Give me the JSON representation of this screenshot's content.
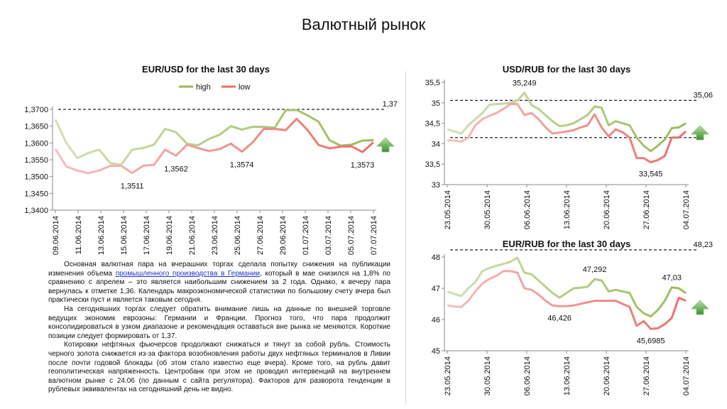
{
  "page_title": "Валютный рынок",
  "text": {
    "p1_a": "Основная валютная пара на вчерашних торгах сделала попытку снижения  на публикации изменения объема ",
    "p1_link": "промышленного производства в Германии",
    "p1_b": ", который в мае снизился на 1,8% по сравнению с апрелем – это является наибольшим  снижением  за 2 года. Однако, к вечеру пара вернулась к отметке 1,36. Календарь макроэкономической статистики по большому счету вчера был практически пуст и является таковым сегодня.",
    "p2": "На сегодняшних торгах следует обратить внимание лишь на данные по внешней торговле ведущих экономик еврозоны: Германии и Франции. Прогноз того, что пара продолжит консолидироваться в узком диапазоне и рекомендация оставаться вне рынка не меняются. Короткие позиции следует формировать от 1,37.",
    "p3": "Котировки нефтяных фьючерсов продолжают снижаться и тянут за собой рубль. Стоимость черного золота снижается из-за фактора  возобновления работы двух нефтяных терминалов в Ливии после почти годовой блокады (об этом стало известно еще вчера). Кроме того, на рубль давит геополитическая  напряженность. Центробанк  при этом не проводил интервенций  на внутреннем валютном рынке с 24.06 (по данным с сайта регулятора). Факторов для разворота тенденции  в рублевых эквивалентах на сегодняшний  день не видно."
  },
  "colors": {
    "high": "#9bbb59",
    "low": "#e8706a",
    "arrow": "#3c8d2f",
    "ref_line": "#222222"
  },
  "chart_data": [
    {
      "id": "eurusd",
      "type": "line",
      "title": "EUR/USD for the last 30 days",
      "legend_position": "top",
      "ylim": [
        1.34,
        1.37
      ],
      "yticks": [
        "1,3400",
        "1,3450",
        "1,3500",
        "1,3550",
        "1,3600",
        "1,3650",
        "1,3700"
      ],
      "ytick_values": [
        1.34,
        1.345,
        1.35,
        1.355,
        1.36,
        1.365,
        1.37
      ],
      "xtick_labels": [
        "09.06.2014",
        "11.06.2014",
        "13.06.2014",
        "15.06.2014",
        "17.06.2014",
        "19.06.2014",
        "21.06.2014",
        "23.06.2014",
        "25.06.2014",
        "27.06.2014",
        "29.06.2014",
        "01.07.2014",
        "03.07.2014",
        "05.07.2014",
        "07.07.2014"
      ],
      "reference_line": {
        "value": 1.37,
        "label": "1,37"
      },
      "arrow": "up",
      "series": [
        {
          "name": "high",
          "gradient": "light-to-dark",
          "values": [
            1.367,
            1.36,
            1.3555,
            1.357,
            1.358,
            1.354,
            1.3535,
            1.358,
            1.3585,
            1.3595,
            1.3642,
            1.3632,
            1.3598,
            1.3593,
            1.3612,
            1.3625,
            1.365,
            1.364,
            1.3648,
            1.3648,
            1.3645,
            1.3697,
            1.3698,
            1.3682,
            1.3663,
            1.3608,
            1.3592,
            1.3595,
            1.3607,
            1.3608
          ]
        },
        {
          "name": "low",
          "gradient": "light-to-dark",
          "values": [
            1.3582,
            1.353,
            1.3518,
            1.351,
            1.3518,
            1.3532,
            1.3532,
            1.3511,
            1.3532,
            1.3535,
            1.358,
            1.3562,
            1.3595,
            1.3585,
            1.3576,
            1.3582,
            1.3598,
            1.3574,
            1.3602,
            1.3642,
            1.3642,
            1.3638,
            1.3672,
            1.3638,
            1.3594,
            1.3584,
            1.3589,
            1.359,
            1.3573,
            1.3602
          ]
        }
      ],
      "data_labels": [
        {
          "series": "low",
          "index": 7,
          "text": "1,3511"
        },
        {
          "series": "low",
          "index": 11,
          "text": "1,3562"
        },
        {
          "series": "low",
          "index": 17,
          "text": "1,3574"
        },
        {
          "series": "low",
          "index": 28,
          "text": "1,3573"
        }
      ]
    },
    {
      "id": "usdrub",
      "type": "line",
      "title": "USD/RUB for the last 30 days",
      "ylim": [
        33,
        35.5
      ],
      "yticks": [
        "33",
        "33,5",
        "34",
        "34,5",
        "35",
        "35,5"
      ],
      "ytick_values": [
        33,
        33.5,
        34,
        34.5,
        35,
        35.5
      ],
      "xtick_labels": [
        "23.05.2014",
        "30.05.2014",
        "06.06.2014",
        "13.06.2014",
        "20.06.2014",
        "27.06.2014",
        "04.07.2014"
      ],
      "reference_line": {
        "value": 35.06,
        "label": "35,06"
      },
      "reference_line_2": {
        "value": 34.15
      },
      "arrow": "up",
      "series": [
        {
          "name": "high",
          "gradient": "light-to-dark",
          "values": [
            34.35,
            34.3,
            34.25,
            34.45,
            34.6,
            34.75,
            34.95,
            34.97,
            34.98,
            35.0,
            35.05,
            35.249,
            34.95,
            34.85,
            34.7,
            34.55,
            34.43,
            34.45,
            34.5,
            34.6,
            34.7,
            34.91,
            34.88,
            34.45,
            34.55,
            34.5,
            34.45,
            34.15,
            33.95,
            33.82,
            33.95,
            34.1,
            34.38,
            34.4,
            34.5
          ]
        },
        {
          "name": "low",
          "gradient": "light-to-dark",
          "values": [
            34.08,
            34.08,
            34.05,
            34.15,
            34.45,
            34.6,
            34.68,
            34.75,
            34.85,
            34.97,
            34.97,
            34.7,
            34.75,
            34.6,
            34.4,
            34.25,
            34.27,
            34.3,
            34.33,
            34.4,
            34.45,
            34.72,
            34.4,
            34.18,
            34.35,
            34.28,
            34.15,
            33.65,
            33.65,
            33.545,
            33.6,
            33.7,
            34.15,
            34.15,
            34.3
          ]
        }
      ],
      "data_labels": [
        {
          "series": "high",
          "index": 11,
          "text": "35,249"
        },
        {
          "series": "low",
          "index": 29,
          "text": "33,545"
        }
      ]
    },
    {
      "id": "eurrub",
      "type": "line",
      "title": "EUR/RUB for the last 30 days",
      "ylim": [
        45,
        48
      ],
      "yticks": [
        "45",
        "46",
        "47",
        "48"
      ],
      "ytick_values": [
        45,
        46,
        47,
        48
      ],
      "xtick_labels": [
        "23.05.2014",
        "30.05.2014",
        "06.06.2014",
        "13.06.2014",
        "20.06.2014",
        "27.06.2014",
        "04.07.2014"
      ],
      "reference_line": {
        "value": 48.23,
        "label": "48,23"
      },
      "arrow": "up",
      "series": [
        {
          "name": "high",
          "gradient": "light-to-dark",
          "values": [
            46.9,
            46.82,
            46.75,
            47.0,
            47.2,
            47.55,
            47.65,
            47.72,
            47.78,
            47.85,
            47.98,
            47.5,
            47.45,
            47.25,
            47.05,
            46.85,
            46.7,
            46.85,
            47.0,
            47.02,
            47.05,
            47.292,
            47.25,
            46.9,
            46.95,
            46.9,
            46.85,
            46.4,
            46.2,
            46.1,
            46.3,
            46.6,
            47.03,
            47.0,
            46.85
          ]
        },
        {
          "name": "low",
          "gradient": "light-to-dark",
          "values": [
            46.45,
            46.42,
            46.4,
            46.6,
            46.9,
            47.15,
            47.3,
            47.4,
            47.55,
            47.55,
            47.5,
            47.0,
            46.95,
            46.8,
            46.6,
            46.45,
            46.426,
            46.43,
            46.45,
            46.5,
            46.55,
            46.6,
            46.6,
            46.6,
            46.6,
            46.5,
            46.4,
            45.8,
            45.95,
            45.6985,
            45.72,
            45.85,
            46.05,
            46.7,
            46.6
          ]
        }
      ],
      "data_labels": [
        {
          "series": "low",
          "index": 16,
          "text": "46,426"
        },
        {
          "series": "high",
          "index": 21,
          "text": "47,292"
        },
        {
          "series": "low",
          "index": 29,
          "text": "45,6985"
        },
        {
          "series": "high",
          "index": 32,
          "text": "47,03"
        }
      ]
    }
  ]
}
